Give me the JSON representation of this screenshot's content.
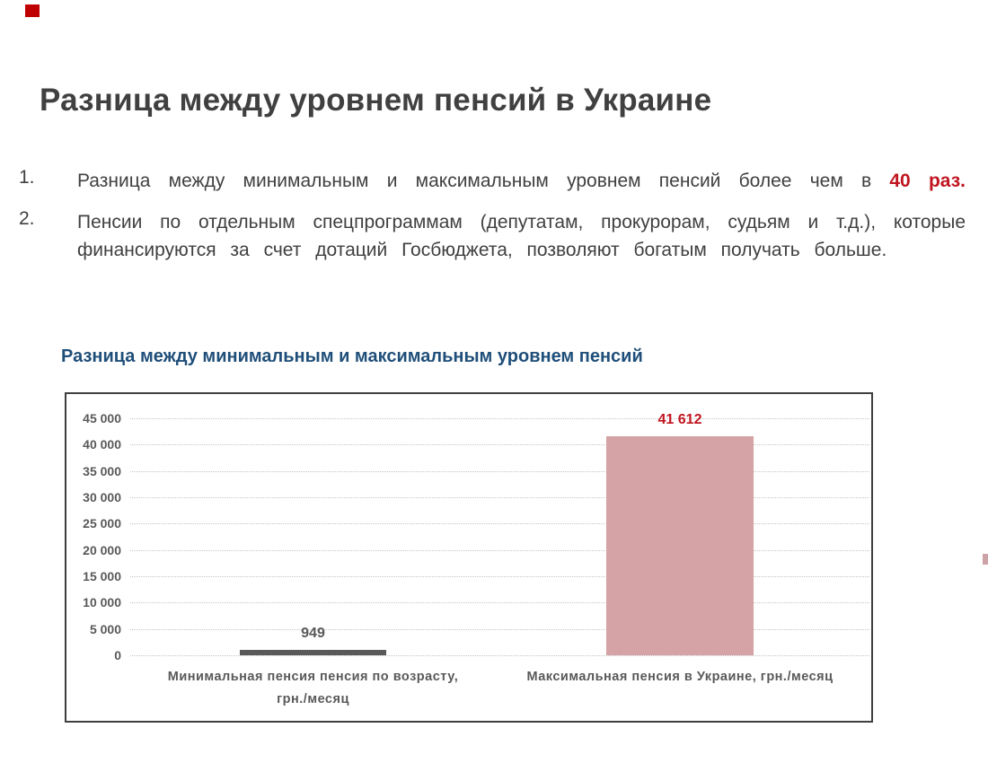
{
  "title": "Разница между уровнем пенсий в Украине",
  "points": [
    {
      "number": "1.",
      "text": "Разница между минимальным и максимальным уровнем пенсий более чем в ",
      "highlight": "40 раз."
    },
    {
      "number": "2.",
      "text": "Пенсии по отдельным спецпрограммам (депутатам, прокурорам, судьям и т.д.), которые финансируются за счет дотаций Госбюджета, позволяют богатым получать больше.",
      "highlight": ""
    }
  ],
  "colors": {
    "accent_red": "#C01520",
    "heading_blue": "#1F4E79",
    "text_gray": "#404040",
    "axis_gray": "#595959",
    "bar_min": "#595959",
    "bar_max": "#D5A2A6",
    "gridline": "#C4C4C4",
    "corner_marker": "#C00000"
  },
  "chart_data": {
    "type": "bar",
    "title": "Разница между минимальным и максимальным уровнем пенсий",
    "categories": [
      [
        "Минимальная пенсия пенсия по возрасту,",
        "грн./месяц"
      ],
      [
        "Максимальная пенсия в Украине, грн./месяц"
      ]
    ],
    "values": [
      949,
      41612
    ],
    "value_labels": [
      "949",
      "41 612"
    ],
    "value_label_colors": [
      "#595959",
      "#C01520"
    ],
    "bar_colors": [
      "#595959",
      "#D5A2A6"
    ],
    "xlabel": "",
    "ylabel": "",
    "ylim": [
      0,
      45000
    ],
    "ytick_step": 5000,
    "ytick_labels": [
      "0",
      "5 000",
      "10 000",
      "15 000",
      "20 000",
      "25 000",
      "30 000",
      "35 000",
      "40 000",
      "45 000"
    ],
    "grid": true,
    "legend": false
  }
}
